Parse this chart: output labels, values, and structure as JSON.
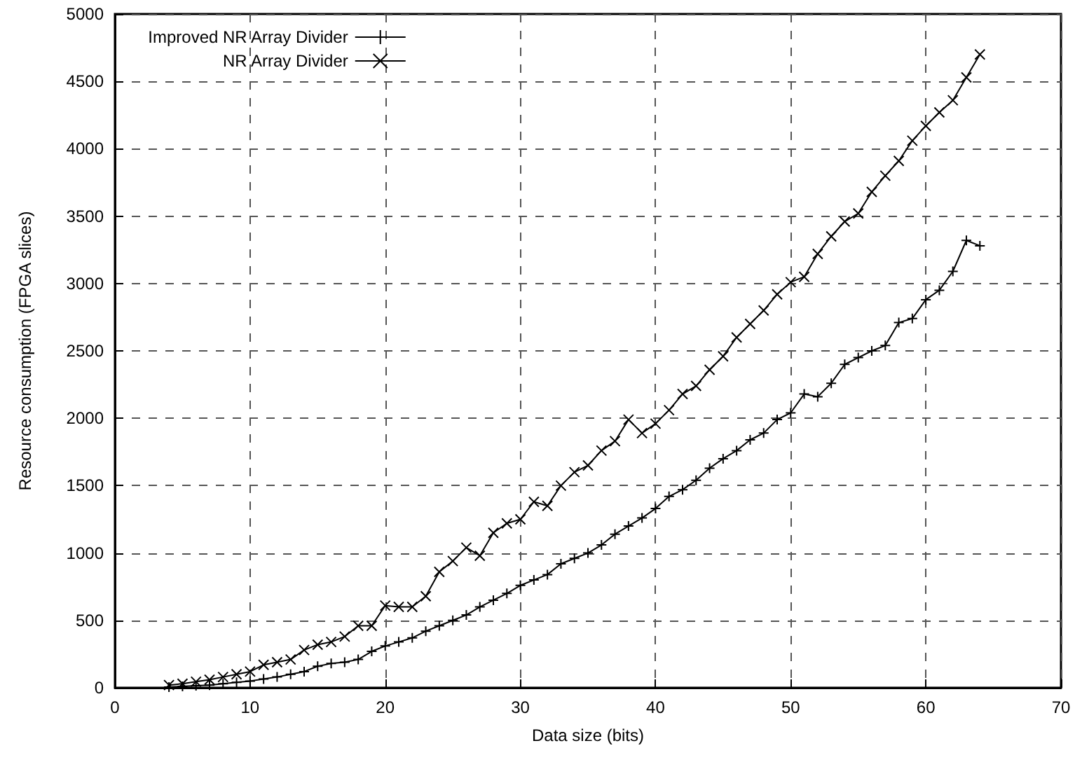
{
  "chart_data": {
    "type": "line",
    "xlabel": "Data size (bits)",
    "ylabel": "Resource consumption (FPGA slices)",
    "x": [
      4,
      5,
      6,
      7,
      8,
      9,
      10,
      11,
      12,
      13,
      14,
      15,
      16,
      17,
      18,
      19,
      20,
      21,
      22,
      23,
      24,
      25,
      26,
      27,
      28,
      29,
      30,
      31,
      32,
      33,
      34,
      35,
      36,
      37,
      38,
      39,
      40,
      41,
      42,
      43,
      44,
      45,
      46,
      47,
      48,
      49,
      50,
      51,
      52,
      53,
      54,
      55,
      56,
      57,
      58,
      59,
      60,
      61,
      62,
      63,
      64
    ],
    "series": [
      {
        "name": "Improved NR Array Divider",
        "color": "#000000",
        "marker": "plus",
        "values": [
          5,
          10,
          15,
          20,
          30,
          40,
          50,
          65,
          80,
          100,
          120,
          160,
          180,
          190,
          210,
          270,
          310,
          340,
          370,
          420,
          460,
          500,
          540,
          600,
          650,
          700,
          760,
          800,
          840,
          920,
          960,
          1000,
          1060,
          1140,
          1200,
          1260,
          1330,
          1420,
          1470,
          1540,
          1630,
          1700,
          1760,
          1840,
          1890,
          1990,
          2040,
          2180,
          2160,
          2260,
          2400,
          2450,
          2500,
          2540,
          2710,
          2740,
          2880,
          2950,
          3090,
          3320,
          3280
        ]
      },
      {
        "name": "NR Array Divider",
        "color": "#000000",
        "marker": "cross",
        "values": [
          20,
          30,
          45,
          60,
          80,
          100,
          120,
          170,
          190,
          210,
          280,
          320,
          340,
          380,
          460,
          460,
          610,
          600,
          600,
          680,
          860,
          940,
          1040,
          980,
          1150,
          1220,
          1250,
          1380,
          1350,
          1500,
          1600,
          1650,
          1760,
          1830,
          1990,
          1890,
          1960,
          2060,
          2180,
          2240,
          2360,
          2460,
          2600,
          2700,
          2800,
          2920,
          3010,
          3050,
          3220,
          3350,
          3460,
          3520,
          3680,
          3800,
          3910,
          4060,
          4170,
          4270,
          4360,
          4530,
          4700
        ]
      }
    ],
    "xlim": [
      0,
      70
    ],
    "xticks": [
      0,
      10,
      20,
      30,
      40,
      50,
      60,
      70
    ],
    "ylim": [
      0,
      5000
    ],
    "yticks": [
      0,
      500,
      1000,
      1500,
      2000,
      2500,
      3000,
      3500,
      4000,
      4500,
      5000
    ],
    "grid": true,
    "legend": "top left",
    "line_style": "solid"
  }
}
